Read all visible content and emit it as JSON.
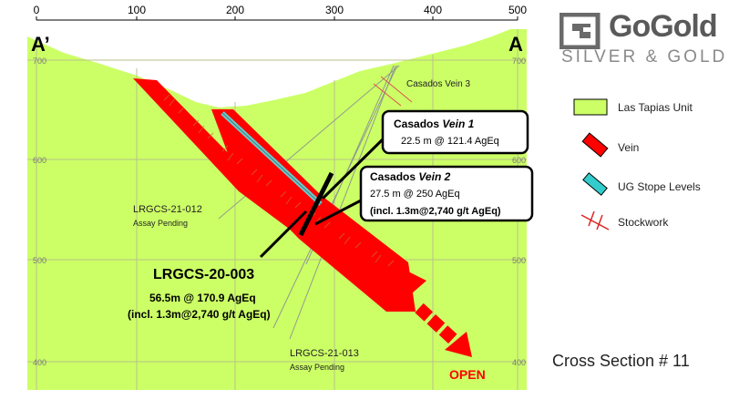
{
  "logo": {
    "name": "GoGold",
    "tagline": "SILVER & GOLD"
  },
  "section": {
    "title": "Cross Section # 11",
    "end_left": "A’",
    "end_right": "A",
    "x_ticks": [
      "0",
      "100",
      "200",
      "300",
      "400",
      "500"
    ],
    "elevation_labels": [
      "700",
      "600",
      "500",
      "400"
    ]
  },
  "annotations": {
    "vein3": "Casados Vein 3",
    "vein1_title": "Casados",
    "vein1_name": "Vein 1",
    "vein1_result": "22.5 m @ 121.4 AgEq",
    "vein2_title": "Casados",
    "vein2_name": "Vein 2",
    "vein2_result": "27.5 m @ 250 AgEq",
    "vein2_incl": "(incl. 1.3m@2,740 g/t AgEq)",
    "hole012_name": "LRGCS-21-012",
    "hole012_status": "Assay Pending",
    "hole003_name": "LRGCS-20-003",
    "hole003_result": "56.5m @ 170.9 AgEq",
    "hole003_incl": "(incl. 1.3m@2,740 g/t AgEq)",
    "hole013_name": "LRGCS-21-013",
    "hole013_status": "Assay Pending",
    "open_label": "OPEN"
  },
  "legend": [
    {
      "label": "Las Tapias Unit",
      "icon": "green-unit-swatch-icon",
      "color": "#ccff66"
    },
    {
      "label": "Vein",
      "icon": "red-vein-swatch-icon",
      "color": "#ff0000"
    },
    {
      "label": "UG Stope Levels",
      "icon": "cyan-stope-swatch-icon",
      "color": "#33cccc"
    },
    {
      "label": "Stockwork",
      "icon": "stockwork-symbol-icon",
      "color": "#dd2222"
    }
  ],
  "colors": {
    "unit": "#ccff66",
    "vein": "#ff0000",
    "stope": "#66cccc",
    "grid": "#b8c08a"
  }
}
